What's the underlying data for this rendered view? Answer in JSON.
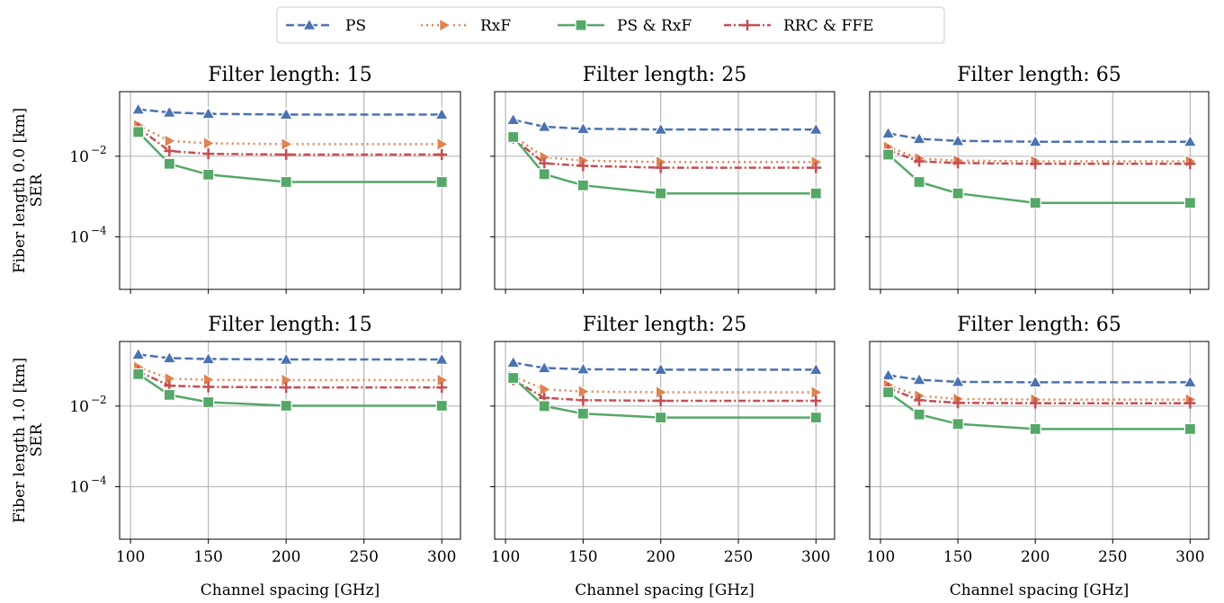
{
  "legend": {
    "placement": "top-center",
    "entries": [
      {
        "name": "PS",
        "color": "#4c72b0",
        "marker": "triangle-up",
        "dash": "dashed"
      },
      {
        "name": "RxF",
        "color": "#dd8452",
        "marker": "triangle-right",
        "dash": "dotted"
      },
      {
        "name": "PS & RxF",
        "color": "#55a868",
        "marker": "square",
        "dash": "solid"
      },
      {
        "name": "RRC & FFE",
        "color": "#c44e52",
        "marker": "plus",
        "dash": "dashdot"
      }
    ]
  },
  "chart_data": [
    {
      "type": "line",
      "row": 0,
      "col": 0,
      "title": "Filter length: 15",
      "ylabel_line1": "Fiber length 0.0 [km]",
      "ylabel_line2": "SER",
      "xlabel": "",
      "yscale": "log",
      "ylim": [
        5e-06,
        0.4
      ],
      "xlim": [
        93,
        312
      ],
      "grid": true,
      "x": [
        105,
        125,
        150,
        200,
        300
      ],
      "series": [
        {
          "name": "PS",
          "values": [
            0.145,
            0.122,
            0.113,
            0.108,
            0.108
          ]
        },
        {
          "name": "RxF",
          "values": [
            0.058,
            0.024,
            0.021,
            0.02,
            0.02
          ]
        },
        {
          "name": "PS & RxF",
          "values": [
            0.04,
            0.0065,
            0.0035,
            0.0023,
            0.0023
          ]
        },
        {
          "name": "RRC & FFE",
          "values": [
            0.05,
            0.0135,
            0.0115,
            0.011,
            0.011
          ]
        }
      ]
    },
    {
      "type": "line",
      "row": 0,
      "col": 1,
      "title": "Filter length: 25",
      "xlabel": "",
      "yscale": "log",
      "ylim": [
        5e-06,
        0.4
      ],
      "xlim": [
        93,
        312
      ],
      "grid": true,
      "x": [
        105,
        125,
        150,
        200,
        300
      ],
      "series": [
        {
          "name": "PS",
          "values": [
            0.08,
            0.054,
            0.048,
            0.046,
            0.046
          ]
        },
        {
          "name": "RxF",
          "values": [
            0.032,
            0.0095,
            0.0078,
            0.0072,
            0.0072
          ]
        },
        {
          "name": "PS & RxF",
          "values": [
            0.03,
            0.0036,
            0.0019,
            0.0012,
            0.0012
          ]
        },
        {
          "name": "RRC & FFE",
          "values": [
            0.028,
            0.0067,
            0.0058,
            0.0052,
            0.0052
          ]
        }
      ]
    },
    {
      "type": "line",
      "row": 0,
      "col": 2,
      "title": "Filter length: 65",
      "xlabel": "",
      "yscale": "log",
      "ylim": [
        5e-06,
        0.4
      ],
      "xlim": [
        93,
        312
      ],
      "grid": true,
      "x": [
        105,
        125,
        150,
        200,
        300
      ],
      "series": [
        {
          "name": "PS",
          "values": [
            0.037,
            0.027,
            0.024,
            0.023,
            0.023
          ]
        },
        {
          "name": "RxF",
          "values": [
            0.017,
            0.0088,
            0.0078,
            0.0075,
            0.0075
          ]
        },
        {
          "name": "PS & RxF",
          "values": [
            0.011,
            0.0023,
            0.0012,
            0.0007,
            0.0007
          ]
        },
        {
          "name": "RRC & FFE",
          "values": [
            0.014,
            0.0075,
            0.0068,
            0.0065,
            0.0065
          ]
        }
      ]
    },
    {
      "type": "line",
      "row": 1,
      "col": 0,
      "title": "Filter length: 15",
      "ylabel_line1": "Fiber length 1.0 [km]",
      "ylabel_line2": "SER",
      "xlabel": "Channel spacing [GHz]",
      "yscale": "log",
      "ylim": [
        5e-06,
        0.4
      ],
      "xlim": [
        93,
        312
      ],
      "grid": true,
      "x": [
        105,
        125,
        150,
        200,
        300
      ],
      "series": [
        {
          "name": "PS",
          "values": [
            0.19,
            0.155,
            0.147,
            0.143,
            0.143
          ]
        },
        {
          "name": "RxF",
          "values": [
            0.092,
            0.048,
            0.045,
            0.044,
            0.044
          ]
        },
        {
          "name": "PS & RxF",
          "values": [
            0.062,
            0.019,
            0.0125,
            0.0102,
            0.0102
          ]
        },
        {
          "name": "RRC & FFE",
          "values": [
            0.072,
            0.032,
            0.03,
            0.029,
            0.029
          ]
        }
      ]
    },
    {
      "type": "line",
      "row": 1,
      "col": 1,
      "title": "Filter length: 25",
      "xlabel": "Channel spacing [GHz]",
      "yscale": "log",
      "ylim": [
        5e-06,
        0.4
      ],
      "xlim": [
        93,
        312
      ],
      "grid": true,
      "x": [
        105,
        125,
        150,
        200,
        300
      ],
      "series": [
        {
          "name": "PS",
          "values": [
            0.12,
            0.088,
            0.082,
            0.08,
            0.08
          ]
        },
        {
          "name": "RxF",
          "values": [
            0.055,
            0.026,
            0.023,
            0.022,
            0.022
          ]
        },
        {
          "name": "PS & RxF",
          "values": [
            0.05,
            0.01,
            0.0065,
            0.0052,
            0.0052
          ]
        },
        {
          "name": "RRC & FFE",
          "values": [
            0.045,
            0.016,
            0.014,
            0.0135,
            0.0135
          ]
        }
      ]
    },
    {
      "type": "line",
      "row": 1,
      "col": 2,
      "title": "Filter length: 65",
      "xlabel": "Channel spacing [GHz]",
      "yscale": "log",
      "ylim": [
        5e-06,
        0.4
      ],
      "xlim": [
        93,
        312
      ],
      "grid": true,
      "x": [
        105,
        125,
        150,
        200,
        300
      ],
      "series": [
        {
          "name": "PS",
          "values": [
            0.058,
            0.045,
            0.04,
            0.039,
            0.039
          ]
        },
        {
          "name": "RxF",
          "values": [
            0.033,
            0.018,
            0.015,
            0.0145,
            0.0145
          ]
        },
        {
          "name": "PS & RxF",
          "values": [
            0.022,
            0.0062,
            0.0036,
            0.0027,
            0.0027
          ]
        },
        {
          "name": "RRC & FFE",
          "values": [
            0.028,
            0.014,
            0.012,
            0.0118,
            0.0118
          ]
        }
      ]
    }
  ],
  "axes": {
    "xticks": [
      100,
      150,
      200,
      250,
      300
    ],
    "yticks": [
      {
        "value": 0.01,
        "base": "10",
        "exp": "−2"
      },
      {
        "value": 0.0001,
        "base": "10",
        "exp": "−4"
      }
    ]
  },
  "grid_color": "#b0b0b0"
}
